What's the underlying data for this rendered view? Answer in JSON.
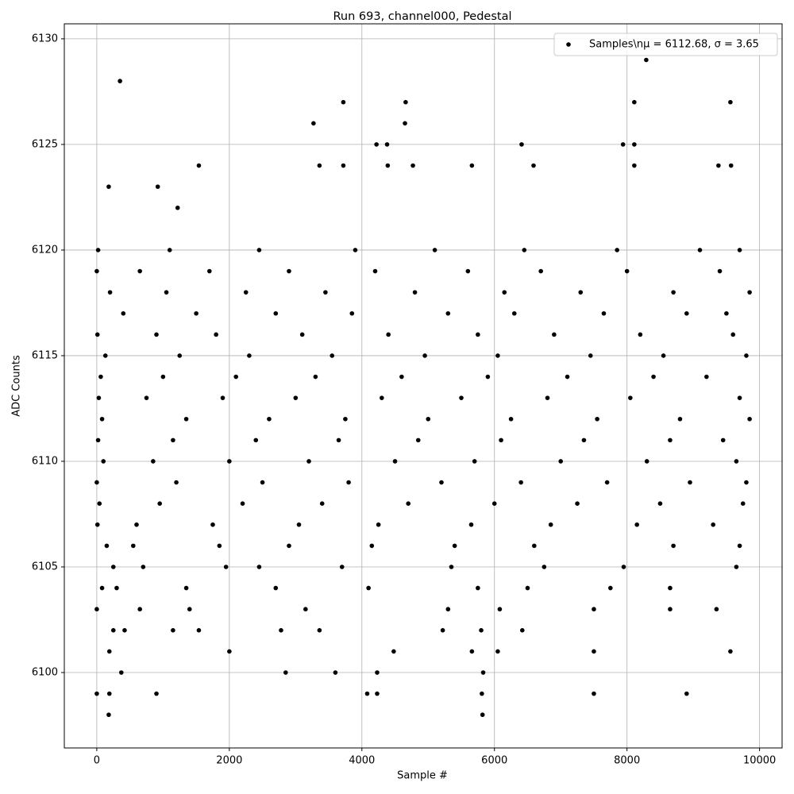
{
  "chart_data": {
    "type": "scatter",
    "title": "Run 693, channel000, Pedestal",
    "x_label": "Sample #",
    "y_label": "ADC Counts",
    "xlim": [
      -490,
      10340
    ],
    "ylim": [
      6096.43,
      6130.71
    ],
    "xticks": [
      0,
      2000,
      4000,
      6000,
      8000,
      10000
    ],
    "yticks": [
      6100,
      6105,
      6110,
      6115,
      6120,
      6125,
      6130
    ],
    "grid": true,
    "legend_position": "upper right",
    "series": [
      {
        "name": "Samples\\nμ = 6112.68, σ = 3.65",
        "color": "#000000",
        "x": [
          0,
          180,
          190,
          350,
          370,
          900,
          3270,
          3720,
          4660,
          4650,
          4220,
          4380,
          5820,
          5830,
          5810,
          8290,
          8110,
          9560,
          7500,
          8900,
          4080,
          4230,
          4230,
          3600,
          2850,
          7940,
          8110,
          6410,
          1220,
          1540,
          3360,
          3720,
          4390,
          4770,
          5660,
          6590,
          8110,
          9380,
          9570,
          180,
          920,
          2000,
          1540,
          3360,
          9560,
          7500,
          6050,
          5660,
          4480,
          190,
          20,
          1100,
          2450,
          3900,
          5100,
          6450,
          7850,
          9100,
          9700,
          0,
          650,
          1700,
          2900,
          4200,
          5600,
          6700,
          8000,
          9400,
          200,
          1050,
          2250,
          3450,
          4800,
          6150,
          7300,
          8700,
          9850,
          400,
          1500,
          2700,
          3850,
          5300,
          6300,
          7650,
          8900,
          9500,
          10,
          900,
          1800,
          3100,
          4400,
          5750,
          6900,
          8200,
          9600,
          130,
          1250,
          2300,
          3550,
          4950,
          6050,
          7450,
          8550,
          9800,
          60,
          1000,
          2100,
          3300,
          4600,
          5900,
          7100,
          8400,
          9200,
          30,
          750,
          1900,
          3000,
          4300,
          5500,
          6800,
          8050,
          9700,
          80,
          1350,
          2600,
          3750,
          5000,
          6250,
          7550,
          8800,
          9850,
          20,
          1150,
          2400,
          3650,
          4850,
          6100,
          7350,
          8650,
          9450,
          100,
          850,
          2000,
          3200,
          4500,
          5700,
          7000,
          8300,
          9650,
          0,
          1200,
          2500,
          3800,
          5200,
          6400,
          7700,
          8950,
          9800,
          40,
          950,
          2200,
          3400,
          4700,
          6000,
          7250,
          8500,
          9750,
          10,
          600,
          1750,
          3050,
          4250,
          5650,
          6850,
          8150,
          9300,
          150,
          550,
          1850,
          2900,
          4150,
          5400,
          6600,
          8700,
          9700,
          250,
          700,
          1950,
          2450,
          3700,
          5350,
          6750,
          7950,
          9650,
          80,
          300,
          1350,
          2700,
          4100,
          5750,
          6500,
          7750,
          8650,
          0,
          650,
          1400,
          3150,
          5300,
          6080,
          7500,
          8650,
          9350,
          250,
          420,
          1150,
          2780,
          5220,
          6420,
          5800
        ],
        "values": [
          6099,
          6098,
          6099,
          6128,
          6100,
          6099,
          6126,
          6127,
          6127,
          6126,
          6125,
          6125,
          6098,
          6100,
          6099,
          6129,
          6127,
          6127,
          6099,
          6099,
          6099,
          6099,
          6100,
          6100,
          6100,
          6125,
          6125,
          6125,
          6122,
          6124,
          6124,
          6124,
          6124,
          6124,
          6124,
          6124,
          6124,
          6124,
          6124,
          6123,
          6123,
          6101,
          6102,
          6102,
          6101,
          6101,
          6101,
          6101,
          6101,
          6101,
          6120,
          6120,
          6120,
          6120,
          6120,
          6120,
          6120,
          6120,
          6120,
          6119,
          6119,
          6119,
          6119,
          6119,
          6119,
          6119,
          6119,
          6119,
          6118,
          6118,
          6118,
          6118,
          6118,
          6118,
          6118,
          6118,
          6118,
          6117,
          6117,
          6117,
          6117,
          6117,
          6117,
          6117,
          6117,
          6117,
          6116,
          6116,
          6116,
          6116,
          6116,
          6116,
          6116,
          6116,
          6116,
          6115,
          6115,
          6115,
          6115,
          6115,
          6115,
          6115,
          6115,
          6115,
          6114,
          6114,
          6114,
          6114,
          6114,
          6114,
          6114,
          6114,
          6114,
          6113,
          6113,
          6113,
          6113,
          6113,
          6113,
          6113,
          6113,
          6113,
          6112,
          6112,
          6112,
          6112,
          6112,
          6112,
          6112,
          6112,
          6112,
          6111,
          6111,
          6111,
          6111,
          6111,
          6111,
          6111,
          6111,
          6111,
          6110,
          6110,
          6110,
          6110,
          6110,
          6110,
          6110,
          6110,
          6110,
          6109,
          6109,
          6109,
          6109,
          6109,
          6109,
          6109,
          6109,
          6109,
          6108,
          6108,
          6108,
          6108,
          6108,
          6108,
          6108,
          6108,
          6108,
          6107,
          6107,
          6107,
          6107,
          6107,
          6107,
          6107,
          6107,
          6107,
          6106,
          6106,
          6106,
          6106,
          6106,
          6106,
          6106,
          6106,
          6106,
          6105,
          6105,
          6105,
          6105,
          6105,
          6105,
          6105,
          6105,
          6105,
          6104,
          6104,
          6104,
          6104,
          6104,
          6104,
          6104,
          6104,
          6104,
          6103,
          6103,
          6103,
          6103,
          6103,
          6103,
          6103,
          6103,
          6103,
          6102,
          6102,
          6102,
          6102,
          6102,
          6102,
          6102
        ]
      }
    ]
  }
}
